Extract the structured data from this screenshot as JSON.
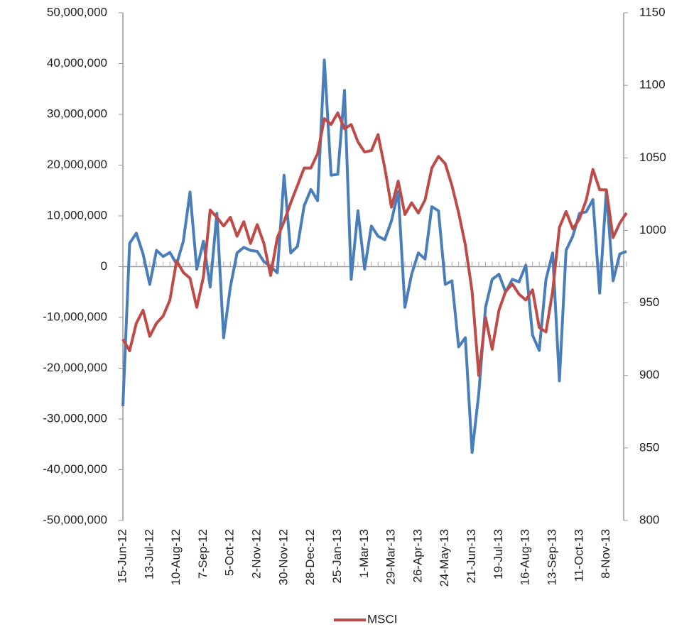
{
  "chart_data": {
    "type": "line",
    "categories": [
      "15-Jun-12",
      null,
      null,
      null,
      "13-Jul-12",
      null,
      null,
      null,
      "10-Aug-12",
      null,
      null,
      null,
      "7-Sep-12",
      null,
      null,
      null,
      "5-Oct-12",
      null,
      null,
      null,
      "2-Nov-12",
      null,
      null,
      null,
      "30-Nov-12",
      null,
      null,
      null,
      "28-Dec-12",
      null,
      null,
      null,
      "25-Jan-13",
      null,
      null,
      null,
      "1-Mar-13",
      null,
      null,
      null,
      "29-Mar-13",
      null,
      null,
      null,
      "26-Apr-13",
      null,
      null,
      null,
      "24-May-13",
      null,
      null,
      null,
      "21-Jun-13",
      null,
      null,
      null,
      "19-Jul-13",
      null,
      null,
      null,
      "16-Aug-13",
      null,
      null,
      null,
      "13-Sep-13",
      null,
      null,
      null,
      "11-Oct-13",
      null,
      null,
      null,
      "8-Nov-13",
      null,
      null,
      null
    ],
    "series": [
      {
        "color": "#4a7ebb",
        "axis": "y",
        "values": [
          -27500000,
          4600000,
          6600000,
          2500000,
          -3500000,
          3200000,
          2000000,
          2800000,
          500000,
          5000000,
          14700000,
          -500000,
          5000000,
          -4000000,
          10500000,
          -14000000,
          -4000000,
          2700000,
          3800000,
          3200000,
          3000000,
          1000000,
          0,
          -1200000,
          18000000,
          2700000,
          4000000,
          12000000,
          15200000,
          13000000,
          40700000,
          18000000,
          18200000,
          34700000,
          -2500000,
          11000000,
          -500000,
          8000000,
          6000000,
          5300000,
          9000000,
          14800000,
          -8000000,
          -1500000,
          2700000,
          1500000,
          11800000,
          11000000,
          -3500000,
          -2800000,
          -15800000,
          -14000000,
          -36600000,
          -25000000,
          -8000000,
          -2500000,
          -1500000,
          -5000000,
          -2500000,
          -3000000,
          300000,
          -13500000,
          -16500000,
          -2500000,
          2700000,
          -22500000,
          3200000,
          6000000,
          10500000,
          10800000,
          13200000,
          -5200000,
          15000000,
          -2800000,
          2500000,
          3000000
        ]
      },
      {
        "name": "MSCI",
        "color": "#be4b48",
        "axis": "y2",
        "values": [
          925,
          917,
          936,
          945,
          927,
          936,
          941,
          952,
          979,
          971,
          967,
          947,
          968,
          1014,
          1009,
          1003,
          1009,
          996,
          1006,
          991,
          1004,
          991,
          969,
          995,
          1006,
          1019,
          1031,
          1043,
          1043,
          1053,
          1077,
          1073,
          1081,
          1070,
          1073,
          1061,
          1054,
          1055,
          1066,
          1043,
          1016,
          1034,
          1011,
          1019,
          1012,
          1021,
          1043,
          1051,
          1046,
          1031,
          1012,
          990,
          958,
          900,
          940,
          918,
          945,
          958,
          963,
          956,
          952,
          959,
          933,
          930,
          958,
          1002,
          1013,
          1001,
          1008,
          1021,
          1042,
          1028,
          1028,
          995,
          1005,
          1012
        ]
      }
    ],
    "ylim": [
      -50000000,
      50000000
    ],
    "yticks": [
      {
        "value": -50000000,
        "label": "-50,000,000"
      },
      {
        "value": -40000000,
        "label": "-40,000,000"
      },
      {
        "value": -30000000,
        "label": "-30,000,000"
      },
      {
        "value": -20000000,
        "label": "-20,000,000"
      },
      {
        "value": -10000000,
        "label": "-10,000,000"
      },
      0,
      {
        "value": 10000000,
        "label": "10,000,000"
      },
      {
        "value": 20000000,
        "label": "20,000,000"
      },
      {
        "value": 30000000,
        "label": "30,000,000"
      },
      {
        "value": 40000000,
        "label": "40,000,000"
      },
      {
        "value": 50000000,
        "label": "50,000,000"
      }
    ],
    "y2lim": [
      800,
      1150
    ],
    "y2ticks": [
      800,
      850,
      900,
      950,
      1000,
      1050,
      1100,
      1150
    ],
    "legend": "bottom"
  }
}
